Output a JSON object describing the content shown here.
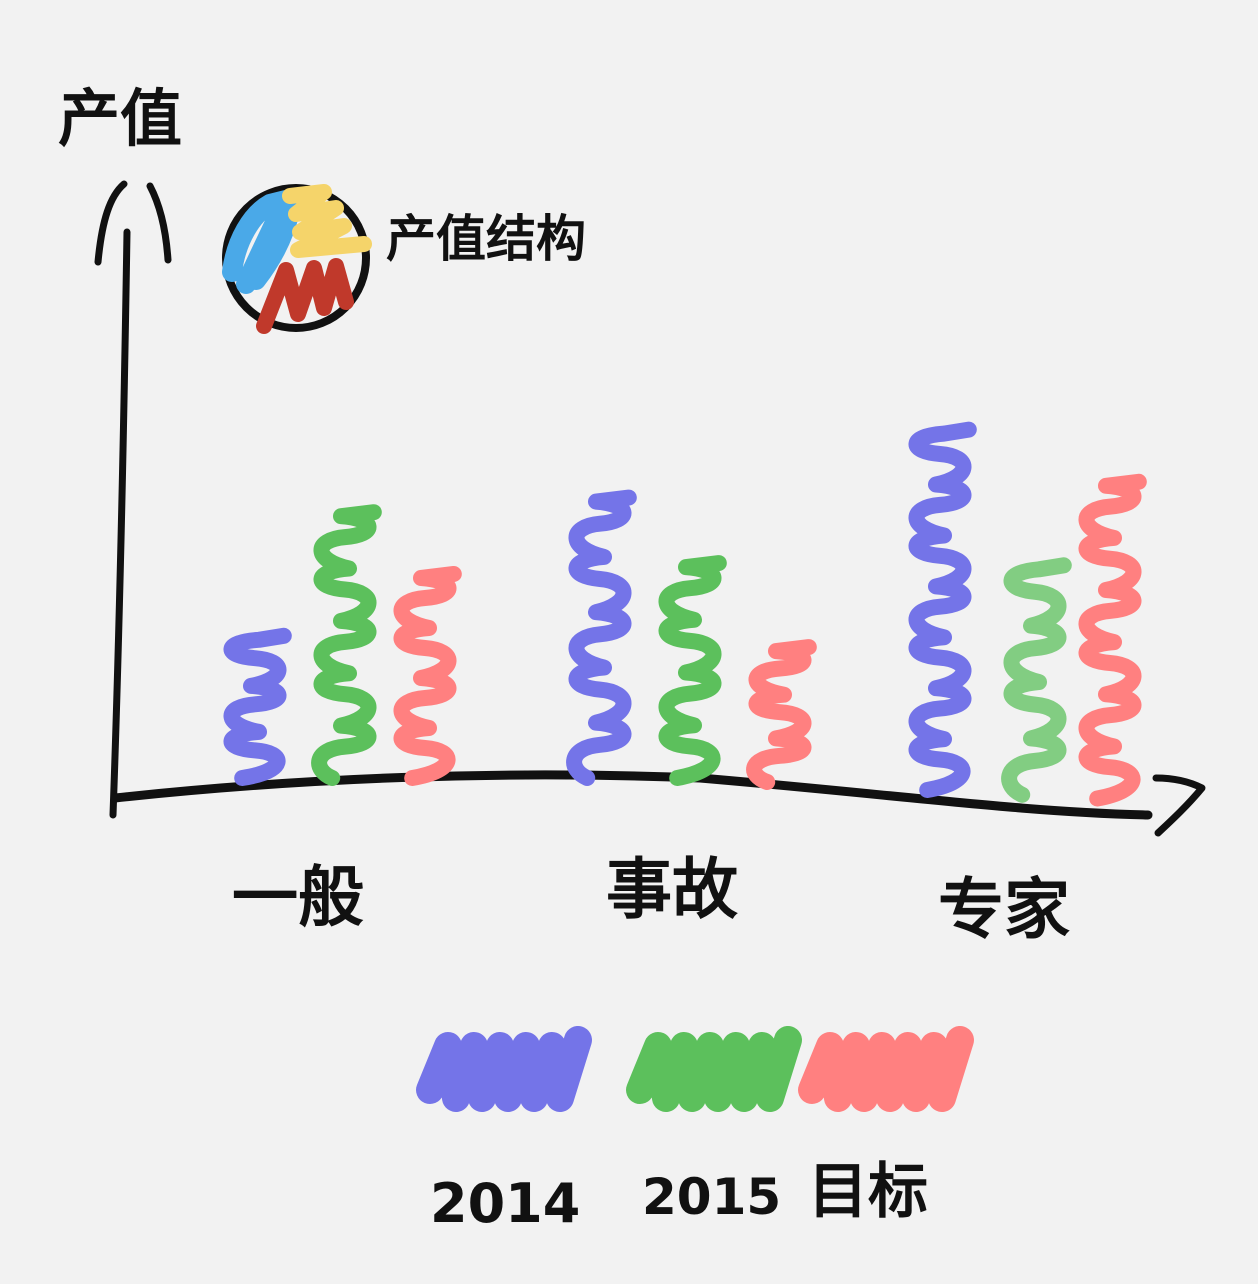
{
  "chart_data": {
    "type": "bar",
    "ylabel": "产值",
    "inset_label": "产值结构",
    "categories": [
      "一般",
      "事故",
      "专家"
    ],
    "series": [
      {
        "name": "2014",
        "values": [
          190,
          380,
          490
        ],
        "color": "#7474e8"
      },
      {
        "name": "2015",
        "values": [
          360,
          290,
          310
        ],
        "color": "#5cc05c"
      },
      {
        "name": "目标",
        "values": [
          275,
          180,
          430
        ],
        "color": "#ff8080"
      }
    ],
    "ylim": [
      0,
      550
    ],
    "grid": false,
    "legend_position": "bottom",
    "inset_colors": [
      "#4aa9e8",
      "#f5d46a",
      "#c0392b"
    ]
  }
}
